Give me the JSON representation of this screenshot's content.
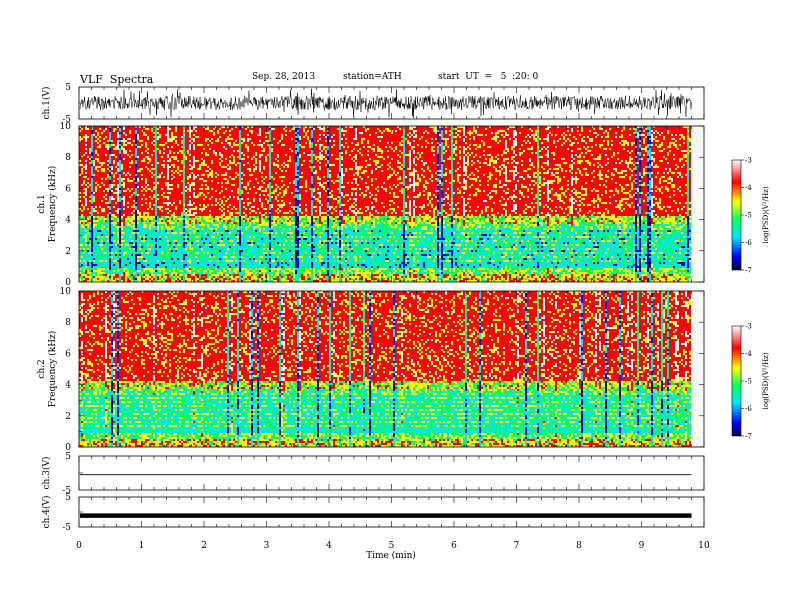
{
  "header": {
    "title": "VLF  Spectra",
    "date": "Sep. 28, 2013",
    "station": "station=ATH",
    "start": "start  UT  =   5  :20: 0"
  },
  "chart_data": [
    {
      "type": "line",
      "name_label": "ch.1(V)",
      "ylim": [
        -5,
        5
      ],
      "yticks": [
        "5",
        "-5"
      ],
      "style": "dense noisy waveform"
    },
    {
      "type": "heatmap",
      "ylabel": "Frequency  (kHz)",
      "channel_label": "ch.1",
      "ylim": [
        0,
        10
      ],
      "yticks": [
        "0",
        "2",
        "4",
        "6",
        "8",
        "10"
      ],
      "colorbar": {
        "label": "log(PSD)(V²/Hz)",
        "range": [
          -7,
          -3
        ],
        "ticks": [
          "-3",
          "-4",
          "-5",
          "-6",
          "-7"
        ]
      }
    },
    {
      "type": "heatmap",
      "ylabel": "Frequency  (kHz)",
      "channel_label": "ch.2",
      "ylim": [
        0,
        10
      ],
      "yticks": [
        "0",
        "2",
        "4",
        "6",
        "8",
        "10"
      ],
      "colorbar": {
        "label": "log(PSD)(V²/Hz)",
        "range": [
          -7,
          -3
        ],
        "ticks": [
          "-3",
          "-4",
          "-5",
          "-6",
          "-7"
        ]
      }
    },
    {
      "type": "line",
      "name_label": "ch.3(V)",
      "ylim": [
        -5,
        5
      ],
      "yticks": [
        "5",
        "-5"
      ],
      "value": -0.5
    },
    {
      "type": "line",
      "name_label": "ch.4(V)",
      "ylim": [
        -5,
        5
      ],
      "yticks": [
        "5",
        "-5"
      ],
      "value": -1.2
    }
  ],
  "xaxis": {
    "label": "Time  (min)",
    "xlim": [
      0,
      10
    ],
    "ticks": [
      "0",
      "1",
      "2",
      "3",
      "4",
      "5",
      "6",
      "7",
      "8",
      "9",
      "10"
    ],
    "data_end": 9.8
  },
  "colors": {
    "spectrum": [
      "#000066",
      "#0000ff",
      "#00e5ff",
      "#00ff66",
      "#ffff00",
      "#ff0000",
      "#ffffff"
    ]
  }
}
